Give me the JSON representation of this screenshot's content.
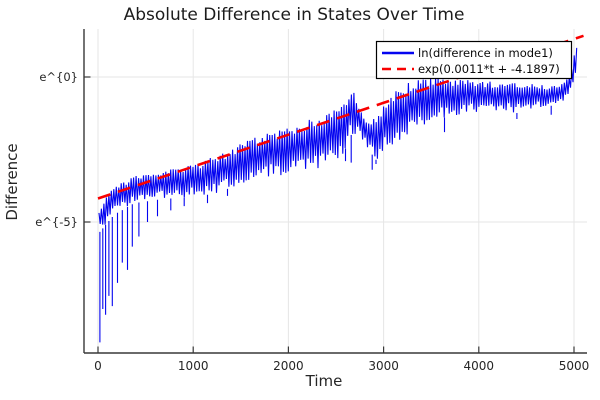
{
  "title": "Absolute Difference in States Over Time",
  "axes": {
    "x_label": "Time",
    "y_label": "Difference",
    "x_ticks": [
      {
        "value": 0,
        "label": "0"
      },
      {
        "value": 1000,
        "label": "1000"
      },
      {
        "value": 2000,
        "label": "2000"
      },
      {
        "value": 3000,
        "label": "3000"
      },
      {
        "value": 4000,
        "label": "4000"
      },
      {
        "value": 5000,
        "label": "5000"
      }
    ],
    "y_ticks": [
      {
        "value_ln": 0,
        "label": "e^{0}"
      },
      {
        "value_ln": -5,
        "label": "e^{-5}"
      }
    ]
  },
  "legend": {
    "entries": [
      {
        "label": "ln(difference in mode1)",
        "color": "#0404f0",
        "style": "solid"
      },
      {
        "label": "exp(0.0011*t + -4.1897)",
        "color": "#f80000",
        "style": "dashed"
      }
    ]
  },
  "colors": {
    "background": "#ffffff",
    "grid": "#e6e6e6",
    "spine": "#383838",
    "tick": "#383838",
    "text": "#262626",
    "legend_border": "#000000",
    "legend_bg": "#ffffff"
  },
  "chart_data": {
    "type": "line",
    "title": "Absolute Difference in States Over Time",
    "xlabel": "Time",
    "ylabel": "Difference",
    "x_range": [
      -150,
      5140
    ],
    "y_scale": "ln",
    "y_range_ln": [
      -9.52,
      1.66
    ],
    "grid": true,
    "legend_position": "top-right",
    "series": [
      {
        "name": "ln(difference in mode1)",
        "kind": "noisy_oscillation",
        "color": "#0404f0",
        "envelope_t_topln_botln": [
          [
            5,
            -4.55,
            -5.4
          ],
          [
            80,
            -4.1,
            -5.1
          ],
          [
            170,
            -3.7,
            -4.75
          ],
          [
            380,
            -3.4,
            -4.35
          ],
          [
            700,
            -3.22,
            -4.2
          ],
          [
            1000,
            -3.0,
            -4.15
          ],
          [
            1250,
            -2.7,
            -4.0
          ],
          [
            1600,
            -2.15,
            -3.55
          ],
          [
            2000,
            -1.68,
            -3.4
          ],
          [
            2300,
            -1.4,
            -3.18
          ],
          [
            2550,
            -1.05,
            -2.85
          ],
          [
            2660,
            -0.38,
            -2.0
          ],
          [
            2740,
            -0.85,
            -2.1
          ],
          [
            2830,
            -1.6,
            -2.45
          ],
          [
            2930,
            -1.2,
            -2.9
          ],
          [
            3000,
            -0.95,
            -2.6
          ],
          [
            3180,
            -0.3,
            -2.15
          ],
          [
            3350,
            -0.08,
            -1.8
          ],
          [
            3530,
            -0.02,
            -1.48
          ],
          [
            3700,
            -0.05,
            -1.35
          ],
          [
            4000,
            -0.12,
            -1.24
          ],
          [
            4230,
            -0.2,
            -1.18
          ],
          [
            4400,
            -0.18,
            -1.24
          ],
          [
            4580,
            -0.22,
            -1.12
          ],
          [
            4755,
            -0.3,
            -1.0
          ],
          [
            4890,
            -0.2,
            -0.84
          ],
          [
            4965,
            0.1,
            -0.55
          ],
          [
            5005,
            0.9,
            -0.1
          ],
          [
            5035,
            1.15,
            0.6
          ]
        ],
        "deep_spikes_t_ln": [
          [
            20,
            -9.15
          ],
          [
            50,
            -8.0
          ],
          [
            80,
            -8.2
          ],
          [
            115,
            -7.55
          ],
          [
            150,
            -7.9
          ],
          [
            205,
            -7.1
          ],
          [
            255,
            -6.4
          ],
          [
            310,
            -6.65
          ],
          [
            360,
            -5.85
          ],
          [
            430,
            -5.5
          ],
          [
            520,
            -5.0
          ],
          [
            625,
            -4.8
          ],
          [
            765,
            -4.6
          ],
          [
            905,
            -4.45
          ],
          [
            1150,
            -4.35
          ],
          [
            1360,
            -4.1
          ],
          [
            2600,
            -2.9
          ],
          [
            2660,
            -2.95
          ],
          [
            2880,
            -3.2
          ],
          [
            2920,
            -3.0
          ],
          [
            3640,
            -1.9
          ],
          [
            4400,
            -1.45
          ],
          [
            4760,
            -1.3
          ]
        ]
      },
      {
        "name": "exp(0.0011*t + -4.1897)",
        "kind": "fit_line",
        "color": "#f80000",
        "slope": 0.0011,
        "intercept": -4.1897,
        "t_range": [
          0,
          5100
        ],
        "dashed": true
      }
    ]
  }
}
